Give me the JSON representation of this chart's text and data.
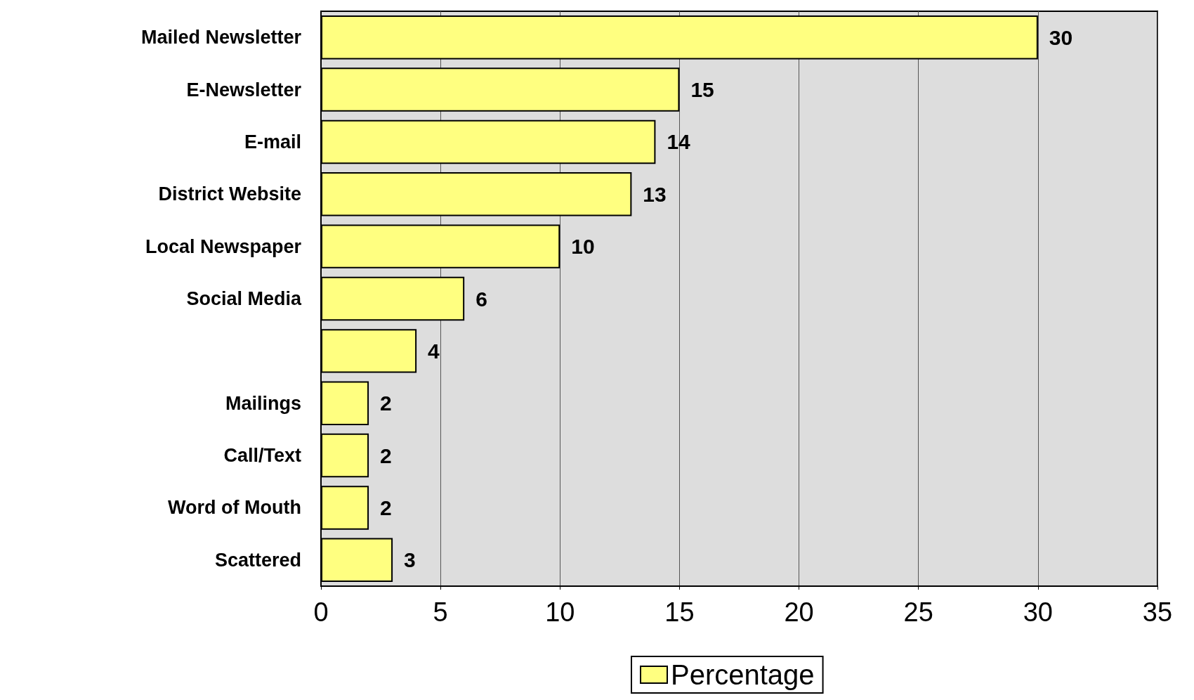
{
  "chart_data": {
    "type": "bar",
    "orientation": "horizontal",
    "categories": [
      "Mailed Newsletter",
      "E-Newsletter",
      "E-mail",
      "District Website",
      "Local Newspaper",
      "Social Media",
      null,
      "Mailings",
      "Call/Text",
      "Word of Mouth",
      "Scattered"
    ],
    "series": [
      {
        "name": "Percentage",
        "color": "#ffff80",
        "values": [
          30,
          15,
          14,
          13,
          10,
          6,
          4,
          2,
          2,
          2,
          3
        ]
      }
    ],
    "xlim": [
      0,
      35
    ],
    "xticks": [
      0,
      5,
      10,
      15,
      20,
      25,
      30,
      35
    ],
    "grid": "x",
    "legend": "bottom",
    "data_labels": true
  }
}
